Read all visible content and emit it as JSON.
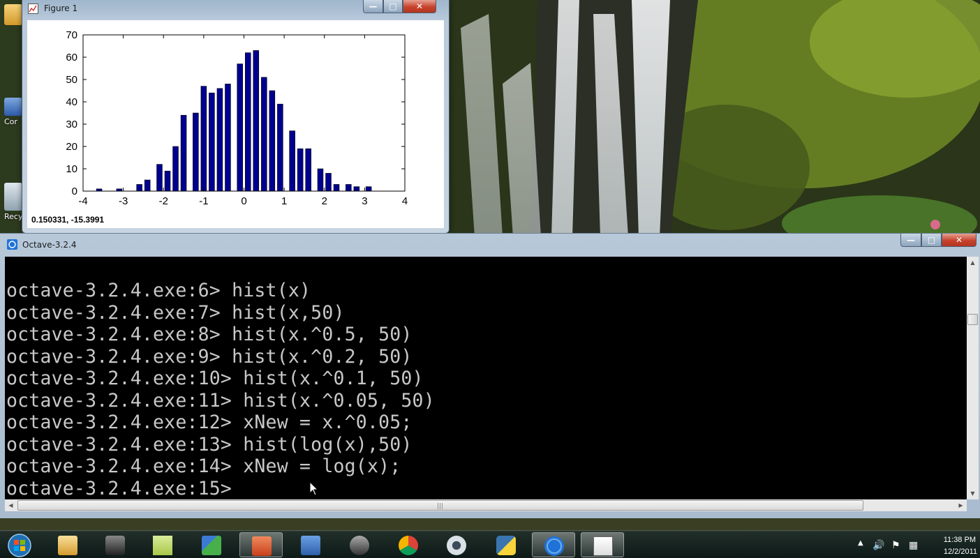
{
  "figure_window": {
    "title": "Figure 1",
    "status_coords": "0.150331, -15.3991"
  },
  "octave_window": {
    "title": "Octave-3.2.4",
    "lines": [
      "octave-3.2.4.exe:6> hist(x)",
      "octave-3.2.4.exe:7> hist(x,50)",
      "octave-3.2.4.exe:8> hist(x.^0.5, 50)",
      "octave-3.2.4.exe:9> hist(x.^0.2, 50)",
      "octave-3.2.4.exe:10> hist(x.^0.1, 50)",
      "octave-3.2.4.exe:11> hist(x.^0.05, 50)",
      "octave-3.2.4.exe:12> xNew = x.^0.05;",
      "octave-3.2.4.exe:13> hist(log(x),50)",
      "octave-3.2.4.exe:14> xNew = log(x);",
      "octave-3.2.4.exe:15> "
    ]
  },
  "desktop": {
    "icons": [
      {
        "label": "",
        "name": "folder"
      },
      {
        "label": "Cor",
        "name": "computer"
      },
      {
        "label": "Recy",
        "name": "recycle-bin"
      }
    ]
  },
  "taskbar": {
    "buttons": [
      {
        "name": "explorer",
        "active": false
      },
      {
        "name": "video-camera",
        "active": false
      },
      {
        "name": "sticky-notes",
        "active": false
      },
      {
        "name": "network-manager",
        "active": false
      },
      {
        "name": "powerpoint",
        "active": false
      },
      {
        "name": "remote-desktop",
        "active": false
      },
      {
        "name": "camera",
        "active": false
      },
      {
        "name": "chrome",
        "active": false
      },
      {
        "name": "webcam",
        "active": false
      },
      {
        "name": "python",
        "active": false
      },
      {
        "name": "octave",
        "active": true
      },
      {
        "name": "figure",
        "active": true
      }
    ],
    "clock_time": "11:38 PM",
    "clock_date": "12/2/2011"
  },
  "chart_data": {
    "type": "bar",
    "x": [
      -3.6,
      -3.1,
      -2.6,
      -2.4,
      -2.1,
      -1.9,
      -1.7,
      -1.5,
      -1.2,
      -1.0,
      -0.8,
      -0.6,
      -0.4,
      -0.1,
      0.1,
      0.3,
      0.5,
      0.7,
      0.9,
      1.2,
      1.4,
      1.6,
      1.9,
      2.1,
      2.3,
      2.6,
      2.8,
      3.1
    ],
    "values": [
      1,
      1,
      3,
      5,
      12,
      9,
      20,
      34,
      35,
      47,
      44,
      46,
      48,
      57,
      62,
      63,
      51,
      45,
      39,
      27,
      19,
      19,
      10,
      8,
      3,
      3,
      2,
      2
    ],
    "bin_width": 0.137,
    "title": "",
    "xlabel": "",
    "ylabel": "",
    "xlim": [
      -4,
      4
    ],
    "ylim": [
      0,
      70
    ],
    "xticks": [
      -4,
      -3,
      -2,
      -1,
      0,
      1,
      2,
      3,
      4
    ],
    "yticks": [
      0,
      10,
      20,
      30,
      40,
      50,
      60,
      70
    ],
    "bar_color": "#00008f",
    "grid": false
  }
}
